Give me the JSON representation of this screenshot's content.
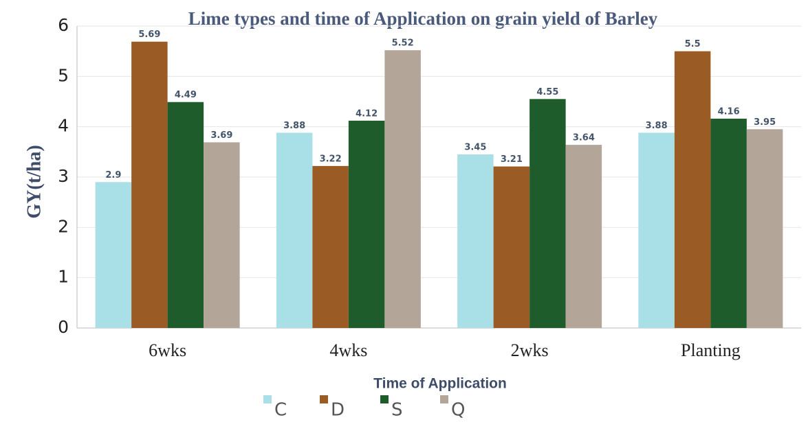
{
  "chart_data": {
    "type": "bar",
    "title": "Lime types and time of Application on grain yield of Barley",
    "x_label": "Time of Application",
    "y_label": "GY(t/ha)",
    "categories": [
      "6wks",
      "4wks",
      "2wks",
      "Planting"
    ],
    "series": [
      {
        "name": "C",
        "color": "#a9dfe6",
        "values": [
          2.9,
          3.88,
          3.45,
          3.88
        ]
      },
      {
        "name": "D",
        "color": "#9b5b24",
        "values": [
          5.69,
          3.22,
          3.21,
          5.5
        ]
      },
      {
        "name": "S",
        "color": "#1f5c2c",
        "values": [
          4.49,
          4.12,
          4.55,
          4.16
        ]
      },
      {
        "name": "Q",
        "color": "#b3a699",
        "values": [
          3.69,
          5.52,
          3.64,
          3.95
        ]
      }
    ],
    "ylim": [
      0,
      6
    ],
    "yticks": [
      0,
      1,
      2,
      3,
      4,
      5,
      6
    ],
    "grid": true,
    "legend": "bottom"
  }
}
